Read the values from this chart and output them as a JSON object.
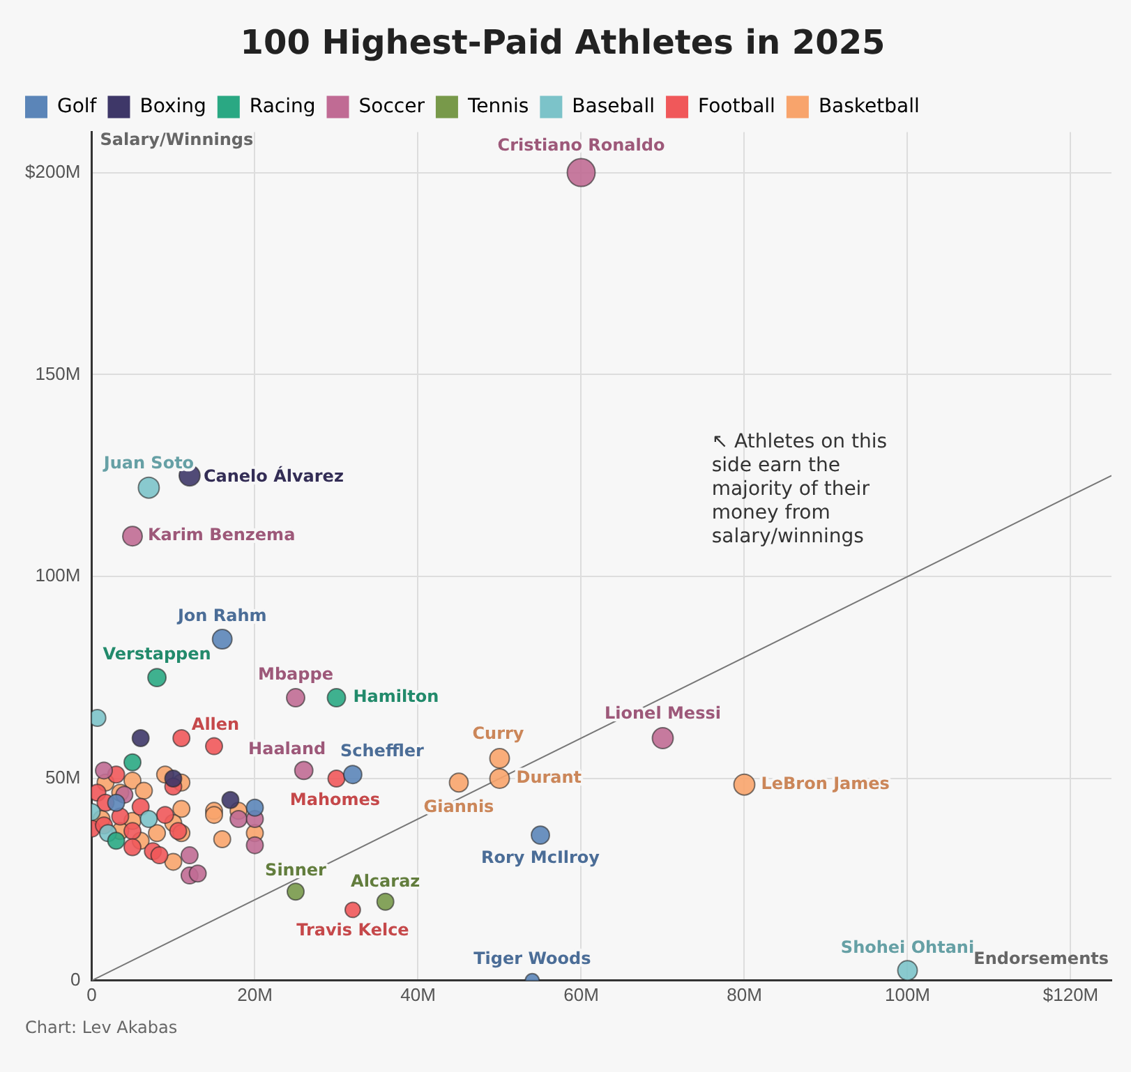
{
  "chart_data": {
    "type": "bubble",
    "title": "100 Highest-Paid Athletes in 2025",
    "xlabel": "Endorsements",
    "ylabel": "Salary/Winnings",
    "legend": "top left",
    "grid": true,
    "xlim": [
      0,
      125
    ],
    "xticks": [
      0,
      {
        "value": 20,
        "label": "20M"
      },
      {
        "value": 40,
        "label": "40M"
      },
      {
        "value": 60,
        "label": "60M"
      },
      {
        "value": 80,
        "label": "80M"
      },
      {
        "value": 100,
        "label": "100M"
      },
      {
        "value": 120,
        "label": "$120M"
      }
    ],
    "ylim": [
      0,
      210
    ],
    "yticks": [
      0,
      {
        "value": 50,
        "label": "50M"
      },
      {
        "value": 100,
        "label": "100M"
      },
      {
        "value": 150,
        "label": "150M"
      },
      {
        "value": 200,
        "label": "$200M"
      }
    ],
    "series": [
      {
        "name": "Golf",
        "color": "#5b85b8",
        "x": [
          16,
          32,
          55,
          54,
          3,
          20
        ],
        "values": [
          84.5,
          51,
          36,
          0,
          44,
          42.8
        ],
        "sizes": [
          0.49,
          0.42,
          0.42,
          0.25,
          0.36,
          0.36
        ]
      },
      {
        "name": "Boxing",
        "color": "#3e3768",
        "x": [
          12,
          6,
          10,
          17
        ],
        "values": [
          125,
          60,
          50,
          44.7
        ],
        "sizes": [
          0.56,
          0.36,
          0.36,
          0.36
        ]
      },
      {
        "name": "Racing",
        "color": "#2aa883",
        "x": [
          8,
          30,
          5,
          3
        ],
        "values": [
          75,
          70,
          54,
          34.6
        ],
        "sizes": [
          0.42,
          0.42,
          0.36,
          0.36
        ]
      },
      {
        "name": "Soccer",
        "color": "#c06b94",
        "x": [
          60,
          5,
          25,
          26,
          70,
          1.5,
          4,
          18,
          20,
          20,
          12,
          12,
          13
        ],
        "values": [
          200,
          110,
          70,
          52,
          60,
          52,
          46,
          40,
          40,
          33.5,
          31,
          26,
          26.5
        ],
        "sizes": [
          1,
          0.49,
          0.42,
          0.42,
          0.56,
          0.36,
          0.36,
          0.36,
          0.36,
          0.36,
          0.36,
          0.36,
          0.36
        ]
      },
      {
        "name": "Tennis",
        "color": "#78994a",
        "x": [
          25,
          36
        ],
        "values": [
          22,
          19.5
        ],
        "sizes": [
          0.36,
          0.36
        ]
      },
      {
        "name": "Baseball",
        "color": "#7cc3c9",
        "x": [
          7,
          100,
          0.7,
          0,
          7,
          2
        ],
        "values": [
          122,
          2.5,
          65,
          41.7,
          40,
          36.5
        ],
        "sizes": [
          0.56,
          0.49,
          0.36,
          0.36,
          0.36,
          0.36
        ]
      },
      {
        "name": "Football",
        "color": "#f0585a",
        "x": [
          15,
          30,
          32,
          11,
          3,
          10,
          0.7,
          1.7,
          6,
          3.5,
          9,
          0,
          1.5,
          5,
          10.6,
          5,
          7.5,
          8.3
        ],
        "values": [
          58,
          50,
          17.5,
          60,
          51,
          48,
          46.5,
          44,
          43,
          40.6,
          41,
          37.6,
          38.4,
          37,
          37,
          33,
          32,
          31
        ],
        "sizes": [
          0.36,
          0.36,
          0.3,
          0.36,
          0.36,
          0.36,
          0.36,
          0.36,
          0.36,
          0.36,
          0.36,
          0.36,
          0.36,
          0.36,
          0.36,
          0.36,
          0.36,
          0.36
        ]
      },
      {
        "name": "Basketball",
        "color": "#f8a46c",
        "x": [
          50,
          50,
          45,
          80,
          9,
          11,
          5,
          6.4,
          1.7,
          3.5,
          11,
          15,
          18,
          15,
          1.2,
          5,
          10,
          3.5,
          11,
          8,
          6,
          16,
          20,
          10
        ],
        "values": [
          55,
          50,
          49,
          48.5,
          51,
          49,
          49.5,
          47,
          49,
          46.5,
          42.5,
          42,
          42,
          41,
          40,
          39.5,
          39,
          37,
          36.5,
          36.5,
          34.6,
          35,
          36.5,
          29.4
        ],
        "sizes": [
          0.49,
          0.49,
          0.45,
          0.56,
          0.36,
          0.36,
          0.36,
          0.36,
          0.36,
          0.36,
          0.36,
          0.36,
          0.36,
          0.36,
          0.36,
          0.36,
          0.36,
          0.36,
          0.36,
          0.36,
          0.36,
          0.36,
          0.36,
          0.36
        ]
      },
      {
        "type": "line",
        "color": "#777777",
        "x": [
          0,
          125
        ],
        "values": [
          0,
          125
        ]
      }
    ],
    "annotations": [
      {
        "text": "Cristiano Ronaldo",
        "x": 60,
        "y": 200
      },
      {
        "text": "Juan Soto",
        "x": 7,
        "y": 122
      },
      {
        "text": "Canelo Álvarez",
        "x": 12,
        "y": 125
      },
      {
        "text": "Karim Benzema",
        "x": 5,
        "y": 110
      },
      {
        "text": "Jon Rahm",
        "x": 16,
        "y": 84.5
      },
      {
        "text": "Verstappen",
        "x": 8,
        "y": 75
      },
      {
        "text": "Mbappe",
        "x": 25,
        "y": 70
      },
      {
        "text": "Hamilton",
        "x": 30,
        "y": 70
      },
      {
        "text": "Allen",
        "x": 15,
        "y": 58
      },
      {
        "text": "Haaland",
        "x": 26,
        "y": 52
      },
      {
        "text": "Scheffler",
        "x": 32,
        "y": 51
      },
      {
        "text": "Mahomes",
        "x": 30,
        "y": 50
      },
      {
        "text": "Curry",
        "x": 50,
        "y": 55
      },
      {
        "text": "Durant",
        "x": 50,
        "y": 50
      },
      {
        "text": "Giannis",
        "x": 45,
        "y": 49
      },
      {
        "text": "Lionel Messi",
        "x": 70,
        "y": 60
      },
      {
        "text": "LeBron James",
        "x": 80,
        "y": 48.5
      },
      {
        "text": "Rory McIlroy",
        "x": 55,
        "y": 36
      },
      {
        "text": "Sinner",
        "x": 25,
        "y": 22
      },
      {
        "text": "Alcaraz",
        "x": 36,
        "y": 19.5
      },
      {
        "text": "Travis Kelce",
        "x": 32,
        "y": 17.5
      },
      {
        "text": "Tiger Woods",
        "x": 54,
        "y": 0
      },
      {
        "text": "Shohei Ohtani",
        "x": 100,
        "y": 2.5
      },
      "↖ Athletes on this side earn the majority of their money from salary/winnings",
      "Chart: Lev Akabas"
    ]
  }
}
